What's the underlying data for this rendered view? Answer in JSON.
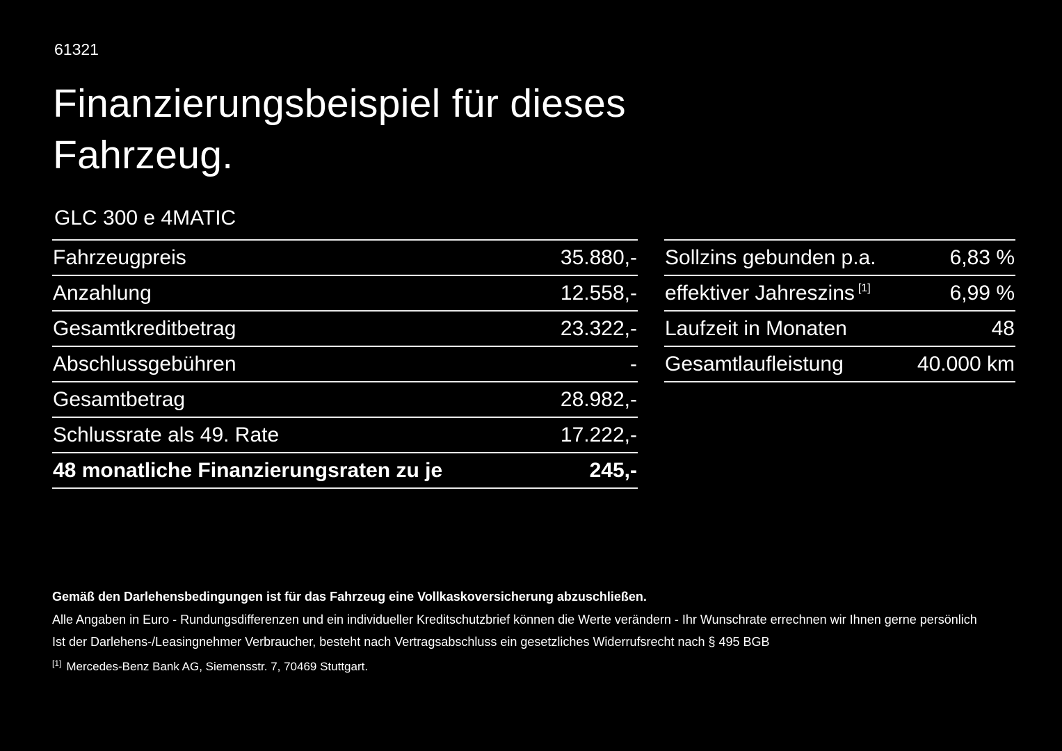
{
  "doc": {
    "number": "61321",
    "title": "Finanzierungsbeispiel für dieses\nFahrzeug.",
    "vehicle": "GLC 300 e 4MATIC"
  },
  "left_table": {
    "rows": [
      {
        "label": "Fahrzeugpreis",
        "value": "35.880,-"
      },
      {
        "label": "Anzahlung",
        "value": "12.558,-"
      },
      {
        "label": "Gesamtkreditbetrag",
        "value": "23.322,-"
      },
      {
        "label": "Abschlussgebühren",
        "value": "-"
      },
      {
        "label": "Gesamtbetrag",
        "value": "28.982,-"
      },
      {
        "label": "Schlussrate als 49. Rate",
        "value": "17.222,-"
      },
      {
        "label": "48 monatliche Finanzierungsraten zu je",
        "value": "245,-"
      }
    ]
  },
  "right_table": {
    "rows": [
      {
        "label": "Sollzins gebunden p.a.",
        "sup": "",
        "value": "6,83 %"
      },
      {
        "label": "effektiver Jahreszins",
        "sup": "[1]",
        "value": "6,99 %"
      },
      {
        "label": "Laufzeit in Monaten",
        "sup": "",
        "value": "48"
      },
      {
        "label": "Gesamtlaufleistung",
        "sup": "",
        "value": "40.000 km"
      }
    ]
  },
  "footer": {
    "bold_note": "Gemäß den Darlehensbedingungen ist für das Fahrzeug eine Vollkaskoversicherung abzuschließen.",
    "note1": "Alle Angaben in Euro - Rundungsdifferenzen und ein individueller Kreditschutzbrief können die Werte verändern - Ihr Wunschrate errechnen wir Ihnen gerne persönlich",
    "note2": "Ist der Darlehens-/Leasingnehmer Verbraucher, besteht nach Vertragsabschluss ein gesetzliches Widerrufsrecht nach § 495 BGB",
    "footnote_marker": "[1]",
    "footnote": "Mercedes-Benz Bank AG, Siemensstr. 7, 70469 Stuttgart."
  },
  "colors": {
    "background": "#000000",
    "text": "#ffffff",
    "line": "#ebebeb"
  }
}
